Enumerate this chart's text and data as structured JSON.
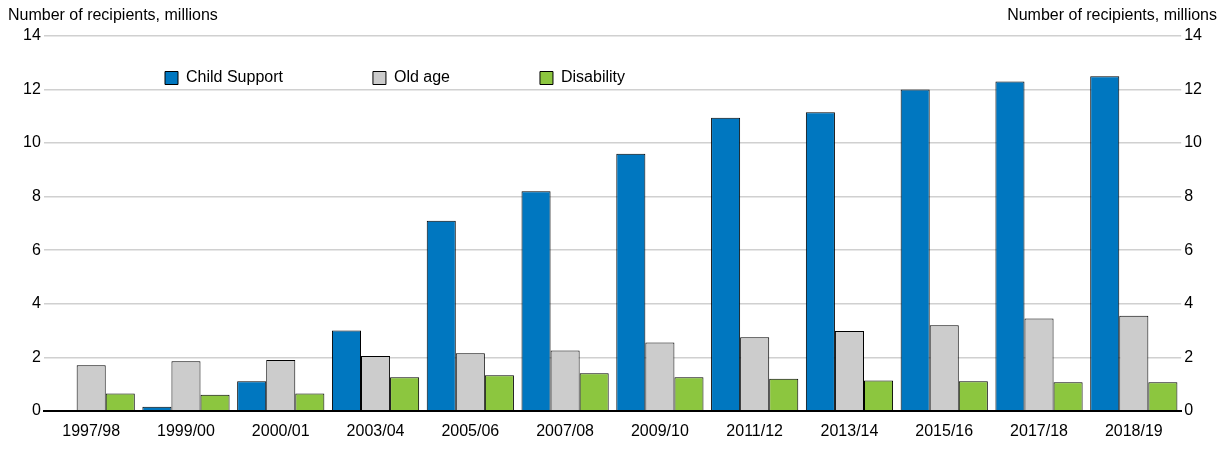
{
  "chart_data": {
    "type": "bar",
    "ylabel": "Number of recipients, millions",
    "y2label": "Number of recipients, millions",
    "categories": [
      "1997/98",
      "1999/00",
      "2000/01",
      "2003/04",
      "2005/06",
      "2007/08",
      "2009/10",
      "2011/12",
      "2013/14",
      "2015/16",
      "2017/18",
      "2018/19"
    ],
    "series": [
      {
        "name": "Child Support",
        "color": "#0077c0",
        "values": [
          null,
          0.15,
          1.1,
          3.0,
          7.1,
          8.2,
          9.6,
          10.95,
          11.15,
          12.0,
          12.3,
          12.5
        ]
      },
      {
        "name": "Old age",
        "color": "#cccccc",
        "values": [
          1.7,
          1.85,
          1.9,
          2.05,
          2.15,
          2.25,
          2.55,
          2.75,
          2.98,
          3.2,
          3.45,
          3.55
        ]
      },
      {
        "name": "Disability",
        "color": "#8cc63f",
        "values": [
          0.65,
          0.6,
          0.65,
          1.25,
          1.33,
          1.4,
          1.25,
          1.2,
          1.13,
          1.1,
          1.07,
          1.07
        ]
      }
    ],
    "ylim": [
      0,
      14
    ],
    "yticks": [
      0,
      2,
      4,
      6,
      8,
      10,
      12,
      14
    ],
    "y2lim": [
      0,
      14
    ],
    "y2ticks": [
      0,
      2,
      4,
      6,
      8,
      10,
      12,
      14
    ],
    "grid": "y",
    "legend": "top left"
  }
}
